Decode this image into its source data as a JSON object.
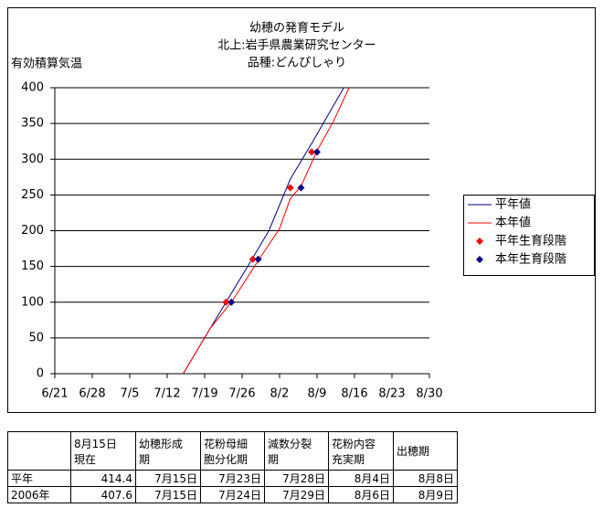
{
  "chart_data": {
    "type": "line",
    "title": [
      "幼穂の発育モデル",
      "北上:岩手県農業研究センター",
      "品種:どんぴしゃり"
    ],
    "y_label": "有効積算気温",
    "xlim": [
      "6/21",
      "8/30"
    ],
    "xticks": [
      "6/21",
      "6/28",
      "7/5",
      "7/12",
      "7/19",
      "7/26",
      "8/2",
      "8/9",
      "8/16",
      "8/23",
      "8/30"
    ],
    "ylim": [
      0,
      400
    ],
    "yticks": [
      0,
      50,
      100,
      150,
      200,
      250,
      300,
      350,
      400
    ],
    "grid": true,
    "legend": "right",
    "series": [
      {
        "name": "平年値",
        "color": "#000080",
        "style": "line",
        "x": [
          "7/15",
          "7/20",
          "7/23",
          "7/28",
          "7/31",
          "8/4",
          "8/8",
          "8/14"
        ],
        "values": [
          0,
          63,
          100,
          162,
          200,
          272,
          322,
          400
        ]
      },
      {
        "name": "本年値",
        "color": "#ff0000",
        "style": "line",
        "x": [
          "7/15",
          "7/20",
          "7/24",
          "7/29",
          "8/2",
          "8/4",
          "8/6",
          "8/9",
          "8/12",
          "8/15"
        ],
        "values": [
          0,
          63,
          100,
          158,
          203,
          245,
          262,
          312,
          352,
          400
        ]
      },
      {
        "name": "平年生育段階",
        "color": "#ff0000",
        "style": "marker",
        "x": [
          "7/23",
          "7/28",
          "8/4",
          "8/8"
        ],
        "values": [
          100,
          160,
          260,
          310
        ]
      },
      {
        "name": "本年生育段階",
        "color": "#000080",
        "style": "marker",
        "x": [
          "7/24",
          "7/29",
          "8/6",
          "8/9"
        ],
        "values": [
          100,
          160,
          260,
          310
        ]
      }
    ]
  },
  "table": {
    "header": [
      "",
      "8月15日\n現在",
      "幼穂形成\n期",
      "花粉母細\n胞分化期",
      "減数分裂\n期",
      "花粉内容\n充実期",
      "出穂期"
    ],
    "rows": [
      [
        "平年",
        "414.4",
        "7月15日",
        "7月23日",
        "7月28日",
        "8月4日",
        "8月8日"
      ],
      [
        "2006年",
        "407.6",
        "7月15日",
        "7月24日",
        "7月29日",
        "8月6日",
        "8月9日"
      ]
    ]
  }
}
